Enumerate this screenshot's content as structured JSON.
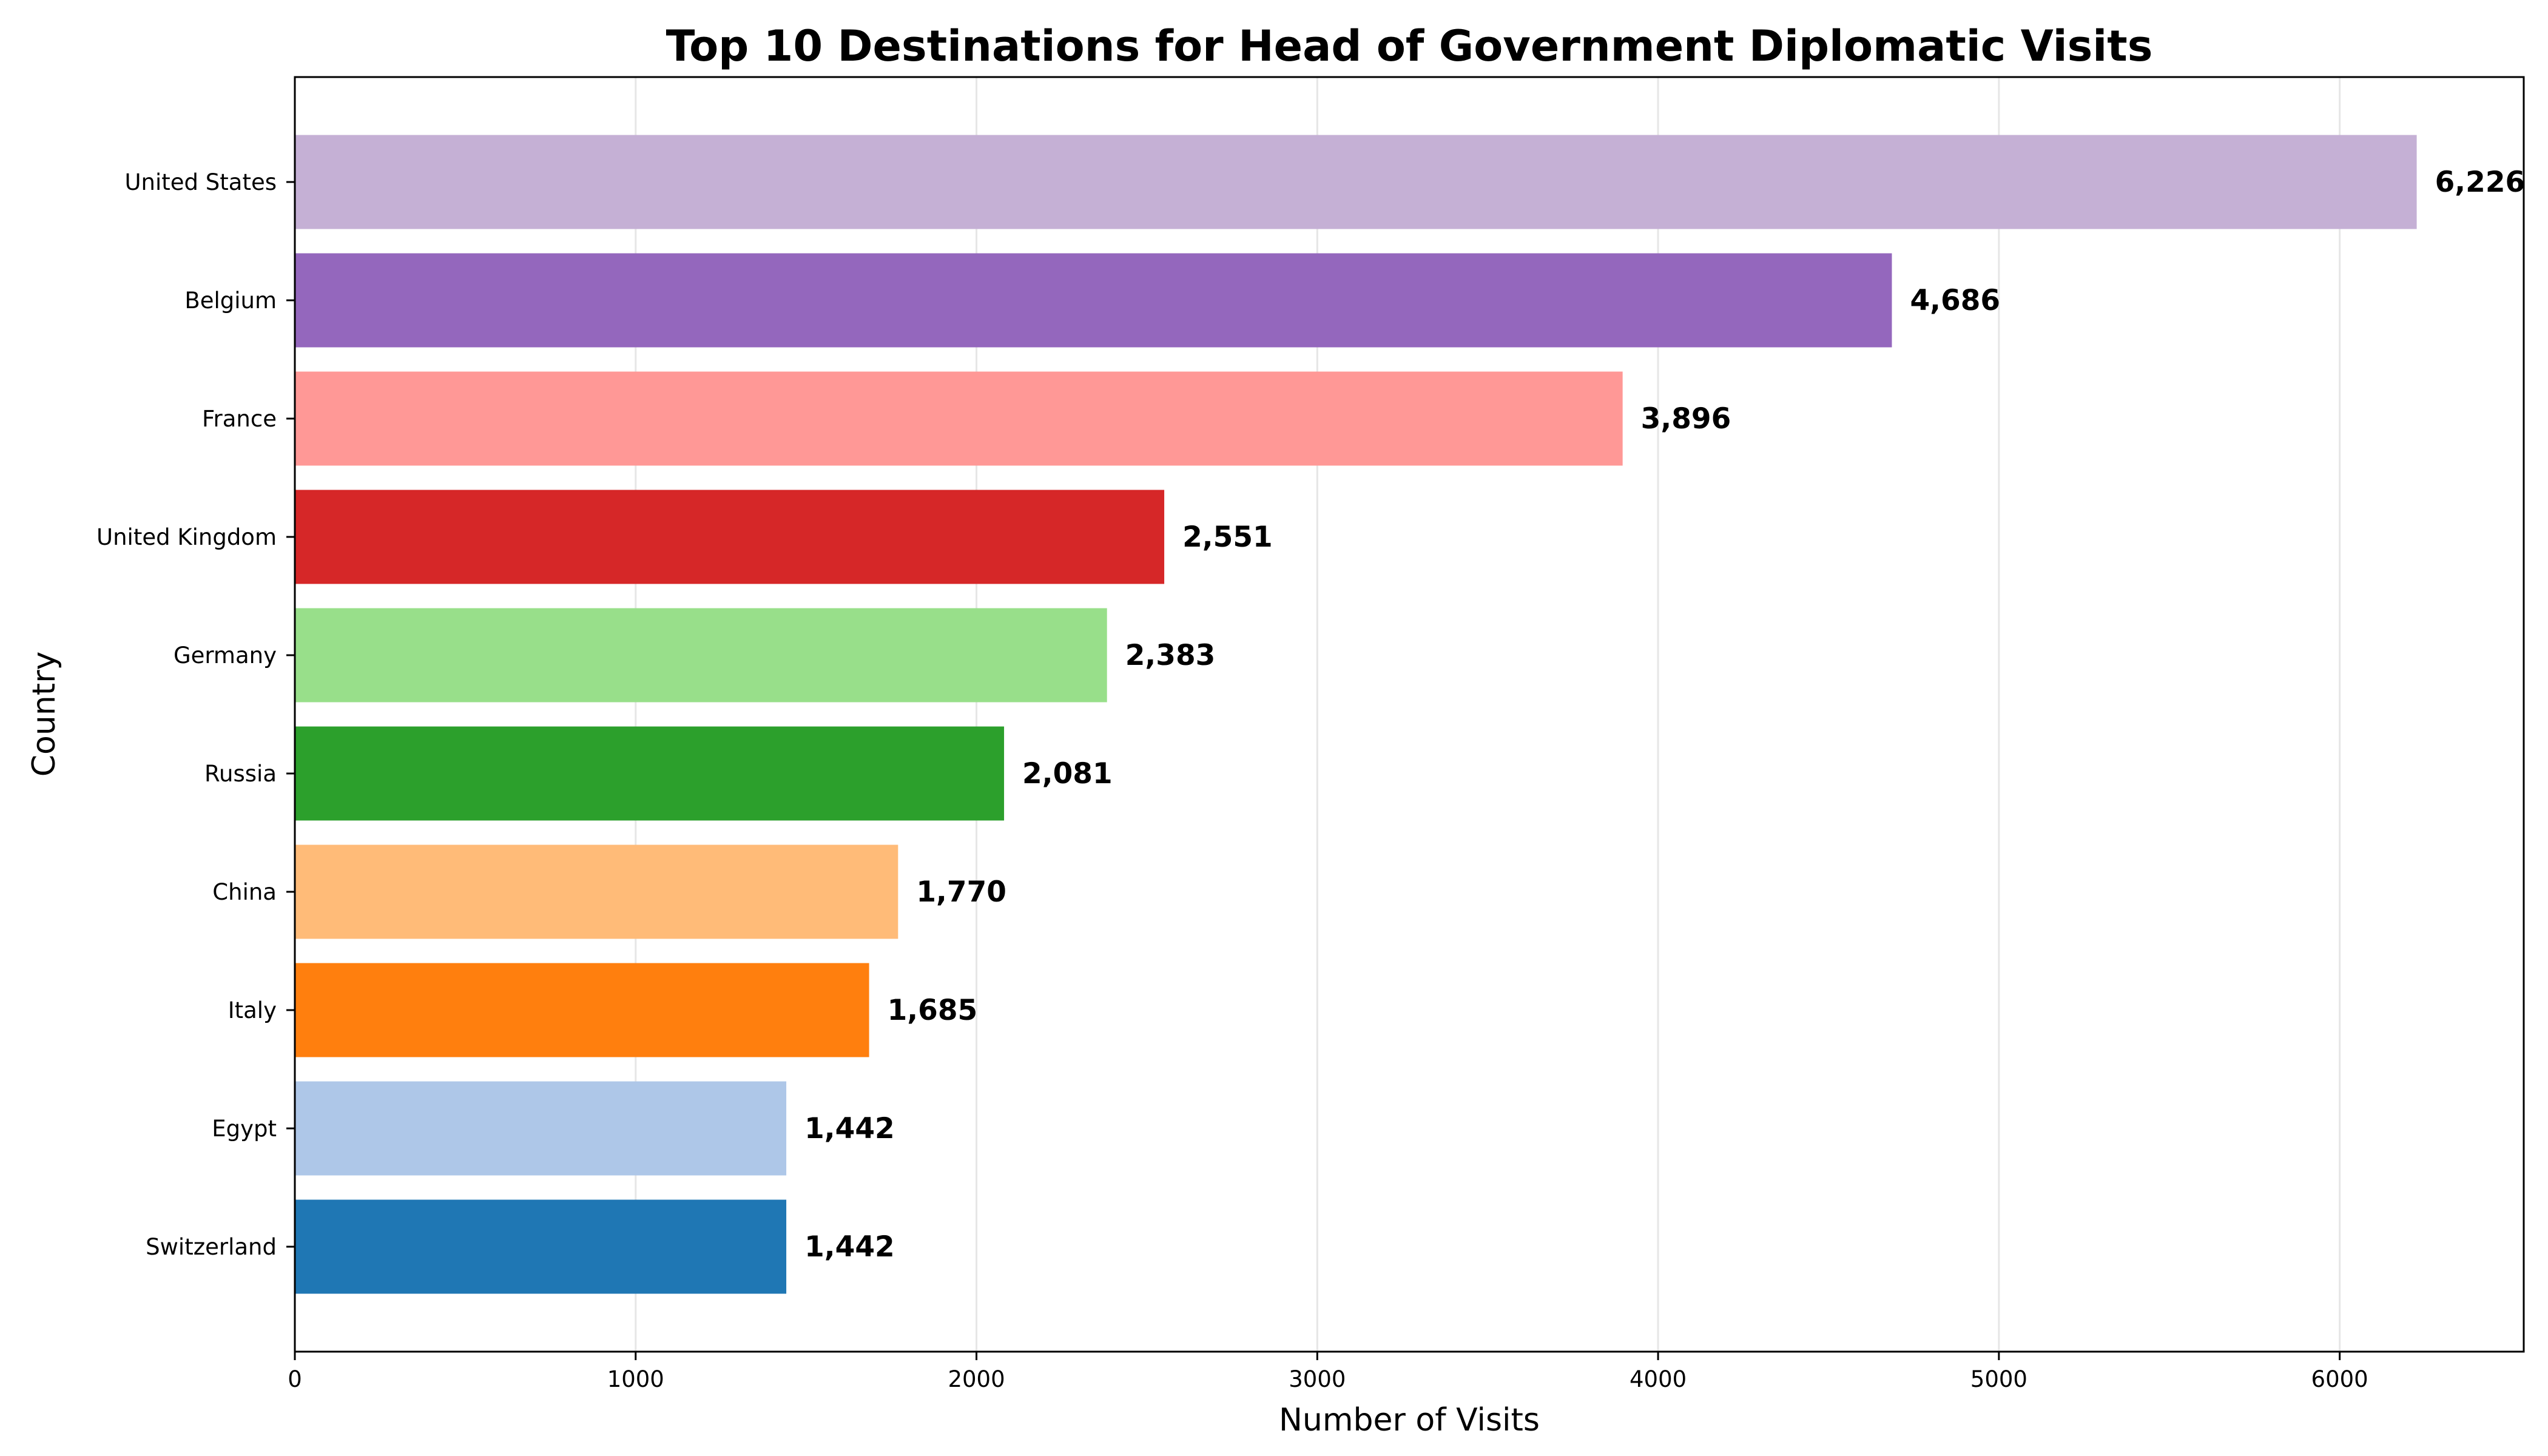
{
  "chart_data": {
    "type": "bar",
    "orientation": "horizontal",
    "title": "Top 10 Destinations for Head of Government Diplomatic Visits",
    "xlabel": "Number of Visits",
    "ylabel": "Country",
    "xlim": [
      0,
      6540
    ],
    "xticks": [
      0,
      1000,
      2000,
      3000,
      4000,
      5000,
      6000
    ],
    "grid": "x-major",
    "categories": [
      "United States",
      "Belgium",
      "France",
      "United Kingdom",
      "Germany",
      "Russia",
      "China",
      "Italy",
      "Egypt",
      "Switzerland"
    ],
    "values": [
      6226,
      4686,
      3896,
      2551,
      2383,
      2081,
      1770,
      1685,
      1442,
      1442
    ],
    "value_labels": [
      "6,226",
      "4,686",
      "3,896",
      "2,551",
      "2,383",
      "2,081",
      "1,770",
      "1,685",
      "1,442",
      "1,442"
    ],
    "colors": [
      "#c5b0d5",
      "#9467bd",
      "#ff9896",
      "#d62728",
      "#98df8a",
      "#2ca02c",
      "#ffbb78",
      "#ff7f0e",
      "#aec7e8",
      "#1f77b4"
    ]
  }
}
